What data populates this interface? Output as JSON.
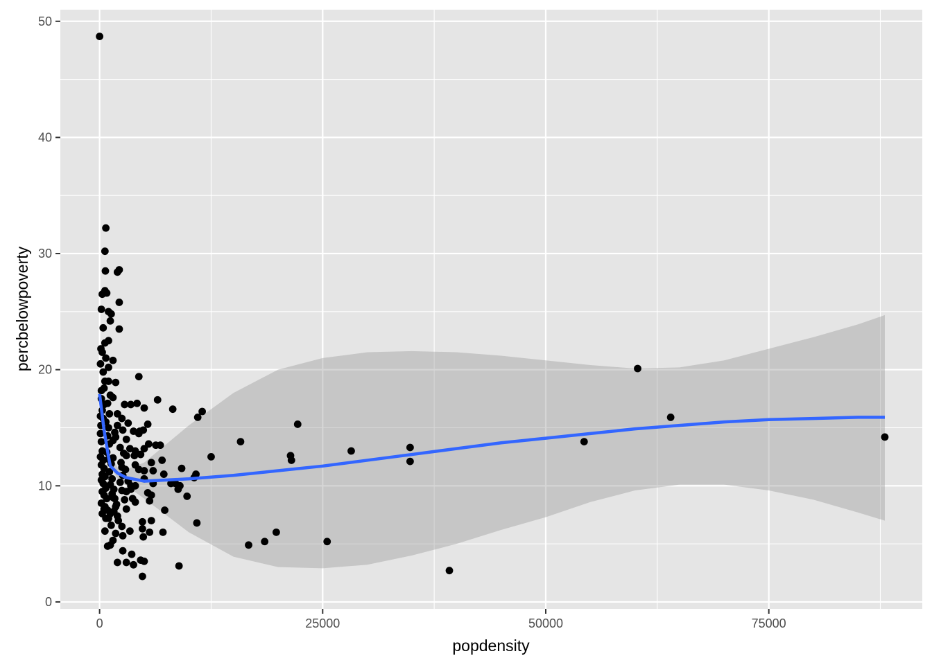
{
  "chart_data": {
    "type": "scatter",
    "xlabel": "popdensity",
    "ylabel": "percbelowpoverty",
    "xlim": [
      -4400,
      92200
    ],
    "ylim": [
      -0.6,
      51
    ],
    "x_ticks": [
      0,
      25000,
      50000,
      75000
    ],
    "x_tick_labels": [
      "0",
      "25000",
      "50000",
      "75000"
    ],
    "y_ticks": [
      0,
      10,
      20,
      30,
      40,
      50
    ],
    "y_tick_labels": [
      "0",
      "10",
      "20",
      "30",
      "40",
      "50"
    ],
    "grid": true,
    "legend": "none",
    "colors": {
      "panel": "#e5e5e5",
      "grid": "#ffffff",
      "points": "#000000",
      "smooth_line": "#3366ff",
      "ribbon": "#999999"
    },
    "points": [
      [
        0,
        48.7
      ],
      [
        700,
        32.2
      ],
      [
        600,
        30.2
      ],
      [
        650,
        28.5
      ],
      [
        2000,
        28.4
      ],
      [
        2200,
        28.6
      ],
      [
        300,
        26.5
      ],
      [
        800,
        26.6
      ],
      [
        600,
        26.8
      ],
      [
        2200,
        25.8
      ],
      [
        200,
        25.2
      ],
      [
        1000,
        25.0
      ],
      [
        1300,
        24.8
      ],
      [
        1200,
        24.2
      ],
      [
        2200,
        23.5
      ],
      [
        400,
        23.6
      ],
      [
        600,
        22.3
      ],
      [
        1000,
        22.5
      ],
      [
        150,
        21.8
      ],
      [
        300,
        21.5
      ],
      [
        700,
        21.0
      ],
      [
        1500,
        20.8
      ],
      [
        100,
        20.5
      ],
      [
        400,
        19.8
      ],
      [
        1000,
        20.2
      ],
      [
        4400,
        19.4
      ],
      [
        600,
        19.0
      ],
      [
        1000,
        19.0
      ],
      [
        1800,
        18.9
      ],
      [
        200,
        18.2
      ],
      [
        500,
        18.4
      ],
      [
        1200,
        17.8
      ],
      [
        1500,
        17.6
      ],
      [
        2800,
        17.0
      ],
      [
        3500,
        17.0
      ],
      [
        4200,
        17.1
      ],
      [
        6500,
        17.4
      ],
      [
        8200,
        16.6
      ],
      [
        5000,
        16.7
      ],
      [
        11500,
        16.4
      ],
      [
        11000,
        15.9
      ],
      [
        2000,
        16.2
      ],
      [
        2500,
        15.8
      ],
      [
        3200,
        15.4
      ],
      [
        5400,
        15.3
      ],
      [
        150,
        15.2
      ],
      [
        1000,
        15.0
      ],
      [
        2600,
        14.8
      ],
      [
        3800,
        14.7
      ],
      [
        4500,
        14.7
      ],
      [
        4900,
        14.8
      ],
      [
        4400,
        14.5
      ],
      [
        1800,
        14.2
      ],
      [
        3000,
        14.0
      ],
      [
        5500,
        13.6
      ],
      [
        6300,
        13.5
      ],
      [
        6800,
        13.5
      ],
      [
        2300,
        13.3
      ],
      [
        3400,
        13.2
      ],
      [
        4000,
        13.0
      ],
      [
        5000,
        13.2
      ],
      [
        4600,
        12.7
      ],
      [
        3000,
        12.6
      ],
      [
        1500,
        12.4
      ],
      [
        7000,
        12.2
      ],
      [
        5800,
        12.0
      ],
      [
        4000,
        11.8
      ],
      [
        2500,
        11.6
      ],
      [
        5000,
        11.3
      ],
      [
        6000,
        11.3
      ],
      [
        4400,
        11.4
      ],
      [
        9200,
        11.5
      ],
      [
        7200,
        11.0
      ],
      [
        10800,
        11.0
      ],
      [
        10600,
        10.7
      ],
      [
        6000,
        10.2
      ],
      [
        3500,
        10.0
      ],
      [
        4000,
        10.0
      ],
      [
        5000,
        10.6
      ],
      [
        8000,
        10.2
      ],
      [
        8500,
        10.2
      ],
      [
        9000,
        10.0
      ],
      [
        8800,
        9.7
      ],
      [
        2500,
        9.6
      ],
      [
        3000,
        9.5
      ],
      [
        5400,
        9.4
      ],
      [
        5800,
        9.2
      ],
      [
        9800,
        9.1
      ],
      [
        1500,
        9.0
      ],
      [
        2800,
        8.8
      ],
      [
        5600,
        8.7
      ],
      [
        4000,
        8.6
      ],
      [
        1800,
        8.2
      ],
      [
        3000,
        8.0
      ],
      [
        7300,
        7.9
      ],
      [
        500,
        8.0
      ],
      [
        1200,
        7.6
      ],
      [
        2000,
        7.4
      ],
      [
        1000,
        7.2
      ],
      [
        5800,
        7.0
      ],
      [
        4800,
        6.9
      ],
      [
        10900,
        6.8
      ],
      [
        1300,
        6.6
      ],
      [
        2500,
        6.5
      ],
      [
        4800,
        6.3
      ],
      [
        3400,
        6.1
      ],
      [
        5600,
        6.0
      ],
      [
        7100,
        6.0
      ],
      [
        600,
        6.1
      ],
      [
        1800,
        5.9
      ],
      [
        2600,
        5.7
      ],
      [
        4900,
        5.6
      ],
      [
        1500,
        5.3
      ],
      [
        1200,
        4.9
      ],
      [
        900,
        4.8
      ],
      [
        2600,
        4.4
      ],
      [
        3600,
        4.1
      ],
      [
        2000,
        3.4
      ],
      [
        3000,
        3.4
      ],
      [
        3800,
        3.2
      ],
      [
        4600,
        3.6
      ],
      [
        5000,
        3.5
      ],
      [
        8900,
        3.1
      ],
      [
        4800,
        2.2
      ],
      [
        100,
        14.5
      ],
      [
        200,
        13.8
      ],
      [
        300,
        13.0
      ],
      [
        100,
        12.5
      ],
      [
        400,
        12.2
      ],
      [
        200,
        11.8
      ],
      [
        500,
        11.5
      ],
      [
        300,
        11.0
      ],
      [
        600,
        10.8
      ],
      [
        200,
        10.5
      ],
      [
        400,
        10.2
      ],
      [
        700,
        9.8
      ],
      [
        300,
        9.5
      ],
      [
        500,
        9.2
      ],
      [
        800,
        8.9
      ],
      [
        200,
        8.5
      ],
      [
        600,
        8.2
      ],
      [
        900,
        7.9
      ],
      [
        300,
        7.6
      ],
      [
        700,
        7.2
      ],
      [
        100,
        16.0
      ],
      [
        300,
        16.5
      ],
      [
        500,
        17.0
      ],
      [
        200,
        17.5
      ],
      [
        400,
        15.8
      ],
      [
        700,
        15.5
      ],
      [
        900,
        14.3
      ],
      [
        1100,
        13.6
      ],
      [
        800,
        12.9
      ],
      [
        1000,
        12.3
      ],
      [
        1300,
        11.9
      ],
      [
        1100,
        11.2
      ],
      [
        1400,
        10.6
      ],
      [
        1200,
        10.1
      ],
      [
        1600,
        9.7
      ],
      [
        1400,
        9.3
      ],
      [
        1700,
        8.9
      ],
      [
        1900,
        8.4
      ],
      [
        1600,
        7.8
      ],
      [
        2100,
        7.0
      ],
      [
        2300,
        10.3
      ],
      [
        2600,
        10.9
      ],
      [
        2400,
        12.0
      ],
      [
        2700,
        12.8
      ],
      [
        2900,
        11.4
      ],
      [
        3200,
        10.4
      ],
      [
        3500,
        9.7
      ],
      [
        3700,
        8.9
      ],
      [
        3900,
        12.6
      ],
      [
        1500,
        13.9
      ],
      [
        1700,
        14.6
      ],
      [
        2000,
        15.2
      ],
      [
        1100,
        16.2
      ],
      [
        900,
        17.1
      ],
      [
        15800,
        13.8
      ],
      [
        16700,
        4.9
      ],
      [
        18500,
        5.2
      ],
      [
        19800,
        6.0
      ],
      [
        12500,
        12.5
      ],
      [
        21400,
        12.6
      ],
      [
        21500,
        12.2
      ],
      [
        22200,
        15.3
      ],
      [
        25500,
        5.2
      ],
      [
        28200,
        13.0
      ],
      [
        34800,
        13.3
      ],
      [
        34800,
        12.1
      ],
      [
        39200,
        2.7
      ],
      [
        54300,
        13.8
      ],
      [
        60300,
        20.1
      ],
      [
        64000,
        15.9
      ],
      [
        88000,
        14.2
      ]
    ],
    "smooth_line": [
      [
        0,
        17.9
      ],
      [
        500,
        14.8
      ],
      [
        1000,
        12.5
      ],
      [
        1200,
        11.7
      ],
      [
        2000,
        11.1
      ],
      [
        3000,
        10.7
      ],
      [
        5000,
        10.4
      ],
      [
        10000,
        10.6
      ],
      [
        15000,
        10.9
      ],
      [
        20000,
        11.3
      ],
      [
        25000,
        11.7
      ],
      [
        30000,
        12.2
      ],
      [
        35000,
        12.7
      ],
      [
        40000,
        13.2
      ],
      [
        45000,
        13.7
      ],
      [
        50000,
        14.1
      ],
      [
        55000,
        14.5
      ],
      [
        60000,
        14.9
      ],
      [
        65000,
        15.2
      ],
      [
        70000,
        15.5
      ],
      [
        75000,
        15.7
      ],
      [
        80000,
        15.8
      ],
      [
        85000,
        15.9
      ],
      [
        88000,
        15.9
      ]
    ],
    "ribbon_upper": [
      [
        0,
        18.2
      ],
      [
        1000,
        13.0
      ],
      [
        2000,
        11.6
      ],
      [
        3000,
        11.4
      ],
      [
        5000,
        12.0
      ],
      [
        10000,
        15.2
      ],
      [
        15000,
        18.0
      ],
      [
        20000,
        20.0
      ],
      [
        25000,
        21.0
      ],
      [
        30000,
        21.5
      ],
      [
        35000,
        21.6
      ],
      [
        40000,
        21.5
      ],
      [
        45000,
        21.2
      ],
      [
        50000,
        20.8
      ],
      [
        55000,
        20.4
      ],
      [
        60000,
        20.1
      ],
      [
        65000,
        20.2
      ],
      [
        70000,
        20.8
      ],
      [
        75000,
        21.8
      ],
      [
        80000,
        22.8
      ],
      [
        85000,
        23.9
      ],
      [
        88000,
        24.7
      ]
    ],
    "ribbon_lower": [
      [
        0,
        17.6
      ],
      [
        1000,
        12.0
      ],
      [
        2000,
        10.6
      ],
      [
        3000,
        10.0
      ],
      [
        5000,
        8.9
      ],
      [
        10000,
        6.0
      ],
      [
        15000,
        3.9
      ],
      [
        20000,
        3.0
      ],
      [
        25000,
        2.9
      ],
      [
        30000,
        3.2
      ],
      [
        35000,
        4.0
      ],
      [
        40000,
        5.0
      ],
      [
        45000,
        6.2
      ],
      [
        50000,
        7.3
      ],
      [
        55000,
        8.6
      ],
      [
        60000,
        9.6
      ],
      [
        65000,
        10.1
      ],
      [
        70000,
        10.1
      ],
      [
        75000,
        9.6
      ],
      [
        80000,
        8.8
      ],
      [
        85000,
        7.7
      ],
      [
        88000,
        7.0
      ]
    ]
  }
}
